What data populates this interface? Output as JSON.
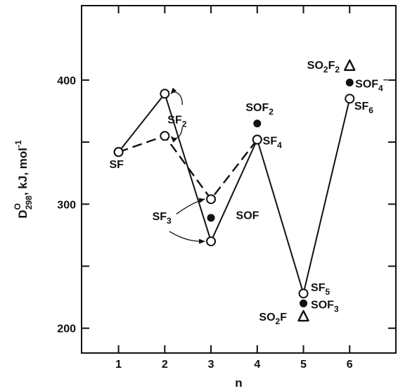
{
  "chart_data": {
    "type": "scatter",
    "xlabel": "n",
    "ylabel": {
      "main": "D",
      "sup": "O",
      "sub": "298",
      "rest": ", kJ, mol",
      "exp": "-1"
    },
    "xlim": [
      0.2,
      7.0
    ],
    "ylim": [
      180,
      460
    ],
    "x_ticks": [
      1,
      2,
      3,
      4,
      5,
      6
    ],
    "y_ticks": [
      200,
      250,
      300,
      350,
      400
    ],
    "y_tick_labels": [
      "200",
      "",
      "300",
      "",
      "400"
    ],
    "grid": false,
    "series": [
      {
        "marker": "open-circle",
        "line": "solid",
        "points": [
          {
            "x": 1,
            "y": 342
          },
          {
            "x": 2,
            "y": 389
          },
          {
            "x": 3,
            "y": 270
          },
          {
            "x": 4,
            "y": 352
          },
          {
            "x": 5,
            "y": 228
          },
          {
            "x": 6,
            "y": 385
          }
        ]
      },
      {
        "marker": "open-circle",
        "line": "dashed",
        "points": [
          {
            "x": 1,
            "y": 342
          },
          {
            "x": 2,
            "y": 355
          },
          {
            "x": 3,
            "y": 304
          },
          {
            "x": 4,
            "y": 352
          }
        ]
      },
      {
        "marker": "filled-circle",
        "line": "none",
        "points": [
          {
            "x": 3,
            "y": 289
          },
          {
            "x": 4,
            "y": 365
          },
          {
            "x": 5,
            "y": 220
          },
          {
            "x": 6,
            "y": 398
          }
        ]
      },
      {
        "marker": "open-triangle",
        "line": "none",
        "points": [
          {
            "x": 5,
            "y": 210
          },
          {
            "x": 6,
            "y": 412
          }
        ]
      }
    ],
    "annotations": [
      {
        "id": "sf",
        "parts": [
          [
            "SF",
            ""
          ]
        ],
        "x": 0.8,
        "y": 329
      },
      {
        "id": "sf2",
        "parts": [
          [
            "SF",
            ""
          ],
          [
            "2",
            "sub"
          ]
        ],
        "x": 2.06,
        "y": 365
      },
      {
        "id": "sf3",
        "parts": [
          [
            "SF",
            ""
          ],
          [
            "3",
            "sub"
          ]
        ],
        "x": 1.73,
        "y": 287
      },
      {
        "id": "sof",
        "parts": [
          [
            "SOF",
            ""
          ]
        ],
        "x": 3.54,
        "y": 288
      },
      {
        "id": "sof2",
        "parts": [
          [
            "SOF",
            ""
          ],
          [
            "2",
            "sub"
          ]
        ],
        "x": 3.75,
        "y": 375
      },
      {
        "id": "sf4",
        "parts": [
          [
            "SF",
            ""
          ],
          [
            "4",
            "sub"
          ]
        ],
        "x": 4.12,
        "y": 348
      },
      {
        "id": "sf5",
        "parts": [
          [
            "SF",
            ""
          ],
          [
            "5",
            "sub"
          ]
        ],
        "x": 5.16,
        "y": 230
      },
      {
        "id": "sof3",
        "parts": [
          [
            "SOF",
            ""
          ],
          [
            "3",
            "sub"
          ]
        ],
        "x": 5.16,
        "y": 216
      },
      {
        "id": "so2f",
        "parts": [
          [
            "SO",
            ""
          ],
          [
            "2",
            "sub"
          ],
          [
            "F",
            ""
          ]
        ],
        "x": 4.04,
        "y": 206
      },
      {
        "id": "so2f2",
        "parts": [
          [
            "SO",
            ""
          ],
          [
            "2",
            "sub"
          ],
          [
            "F",
            ""
          ],
          [
            "2",
            "sub"
          ]
        ],
        "x": 5.08,
        "y": 409
      },
      {
        "id": "sof4m",
        "parts": [
          [
            "SOF",
            ""
          ],
          [
            "4",
            "sub"
          ],
          [
            "−",
            "sup"
          ]
        ],
        "x": 6.12,
        "y": 394
      },
      {
        "id": "sf6",
        "parts": [
          [
            "SF",
            ""
          ],
          [
            "6",
            "sub"
          ]
        ],
        "x": 6.1,
        "y": 376
      }
    ]
  }
}
